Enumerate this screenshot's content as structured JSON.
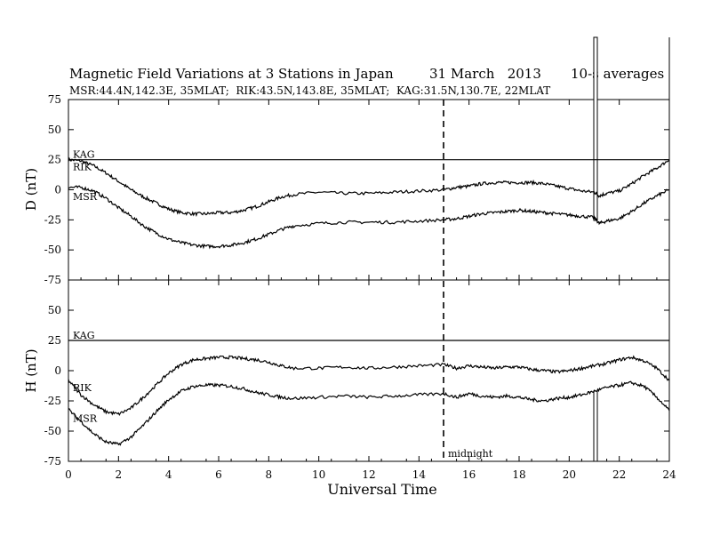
{
  "title": "Magnetic Field Variations at 3 Stations in Japan",
  "date": "31 March   2013",
  "averaging": "10-s averages",
  "stations_line": "MSR:44.4N,142.3E, 35MLAT;  RIK:43.5N,143.8E, 35MLAT;  KAG:31.5N,130.7E, 22MLAT",
  "annotation": "midnight",
  "colors": {
    "line": "#000000",
    "background": "#ffffff"
  },
  "chart_data": [
    {
      "type": "line",
      "panel": "top",
      "ylabel": "D (nT)",
      "xlabel": "Universal Time",
      "xlim": [
        0,
        24
      ],
      "ylim": [
        -75,
        75
      ],
      "x_ticks": [
        0,
        2,
        4,
        6,
        8,
        10,
        12,
        14,
        16,
        18,
        20,
        22,
        24
      ],
      "y_ticks": [
        75,
        50,
        25,
        0,
        -25,
        -50,
        -75
      ],
      "grid": false,
      "series": [
        {
          "name": "KAG",
          "x": [
            0,
            24
          ],
          "y": [
            25,
            25
          ]
        },
        {
          "name": "RIK",
          "x": [
            0,
            0.5,
            1,
            1.5,
            2,
            2.5,
            3,
            3.5,
            4,
            4.5,
            5,
            5.5,
            6,
            6.5,
            7,
            7.5,
            8,
            8.5,
            9,
            10,
            11,
            12,
            13,
            14,
            15,
            15.5,
            16,
            16.5,
            17,
            17.5,
            18,
            18.5,
            19,
            19.5,
            20,
            20.5,
            21,
            21.2,
            21.5,
            22,
            22.5,
            23,
            23.5,
            24
          ],
          "y": [
            25,
            24,
            20,
            14,
            7,
            0,
            -6,
            -11,
            -16,
            -19,
            -20,
            -20,
            -19,
            -19,
            -17,
            -14,
            -10,
            -6,
            -4,
            -2,
            -3,
            -3,
            -2,
            -1,
            0,
            2,
            3,
            5,
            6,
            6,
            6,
            6,
            5,
            3,
            1,
            -1,
            -2,
            -5,
            -3,
            -1,
            5,
            12,
            18,
            25
          ]
        },
        {
          "name": "MSR",
          "x": [
            0,
            0.5,
            1,
            1.5,
            2,
            2.5,
            3,
            3.5,
            4,
            4.5,
            5,
            5.5,
            6,
            6.5,
            7,
            7.5,
            8,
            8.5,
            9,
            10,
            11,
            12,
            13,
            14,
            15,
            15.5,
            16,
            16.5,
            17,
            17.5,
            18,
            18.5,
            19,
            19.5,
            20,
            20.5,
            21,
            21.2,
            21.5,
            22,
            22.5,
            23,
            23.5,
            24
          ],
          "y": [
            2,
            2,
            -1,
            -7,
            -15,
            -22,
            -30,
            -36,
            -41,
            -44,
            -46,
            -47,
            -47,
            -46,
            -44,
            -41,
            -37,
            -33,
            -30,
            -28,
            -27,
            -27,
            -27,
            -26,
            -25,
            -24,
            -22,
            -20,
            -19,
            -18,
            -17,
            -18,
            -19,
            -20,
            -21,
            -22,
            -23,
            -28,
            -26,
            -24,
            -18,
            -11,
            -5,
            0
          ]
        }
      ]
    },
    {
      "type": "line",
      "panel": "bottom",
      "ylabel": "H (nT)",
      "xlabel": "Universal Time",
      "xlim": [
        0,
        24
      ],
      "ylim": [
        -75,
        75
      ],
      "x_ticks": [
        0,
        2,
        4,
        6,
        8,
        10,
        12,
        14,
        16,
        18,
        20,
        22,
        24
      ],
      "y_ticks": [
        75,
        50,
        25,
        0,
        -25,
        -50,
        -75
      ],
      "grid": false,
      "series": [
        {
          "name": "KAG",
          "x": [
            0,
            24
          ],
          "y": [
            25,
            25
          ]
        },
        {
          "name": "RIK",
          "x": [
            0,
            0.5,
            1,
            1.5,
            2,
            2.5,
            3,
            3.5,
            4,
            4.5,
            5,
            5.5,
            6,
            6.5,
            7,
            7.5,
            8,
            8.5,
            9,
            10,
            11,
            12,
            13,
            14,
            15,
            15.5,
            16,
            16.5,
            17,
            17.5,
            18,
            18.5,
            19,
            19.5,
            20,
            20.5,
            21,
            21.5,
            22,
            22.5,
            23,
            23.5,
            24
          ],
          "y": [
            -8,
            -20,
            -28,
            -34,
            -36,
            -31,
            -22,
            -12,
            -2,
            5,
            9,
            10,
            11,
            11,
            10,
            9,
            7,
            4,
            2,
            2,
            3,
            2,
            3,
            4,
            5,
            2,
            4,
            3,
            2,
            3,
            3,
            1,
            0,
            -1,
            0,
            2,
            4,
            6,
            9,
            11,
            8,
            2,
            -8
          ]
        },
        {
          "name": "MSR",
          "x": [
            0,
            0.5,
            1,
            1.5,
            2,
            2.5,
            3,
            3.5,
            4,
            4.5,
            5,
            5.5,
            6,
            6.5,
            7,
            7.5,
            8,
            8.5,
            9,
            10,
            11,
            12,
            13,
            14,
            15,
            15.5,
            16,
            16.5,
            17,
            17.5,
            18,
            18.5,
            19,
            19.5,
            20,
            20.5,
            21,
            21.5,
            22,
            22.5,
            23,
            23.5,
            24
          ],
          "y": [
            -32,
            -42,
            -52,
            -59,
            -61,
            -55,
            -45,
            -34,
            -24,
            -17,
            -13,
            -12,
            -12,
            -13,
            -15,
            -18,
            -20,
            -22,
            -23,
            -22,
            -21,
            -22,
            -21,
            -20,
            -19,
            -22,
            -19,
            -21,
            -22,
            -21,
            -22,
            -24,
            -25,
            -23,
            -22,
            -20,
            -17,
            -14,
            -12,
            -10,
            -13,
            -22,
            -33
          ]
        }
      ]
    }
  ]
}
